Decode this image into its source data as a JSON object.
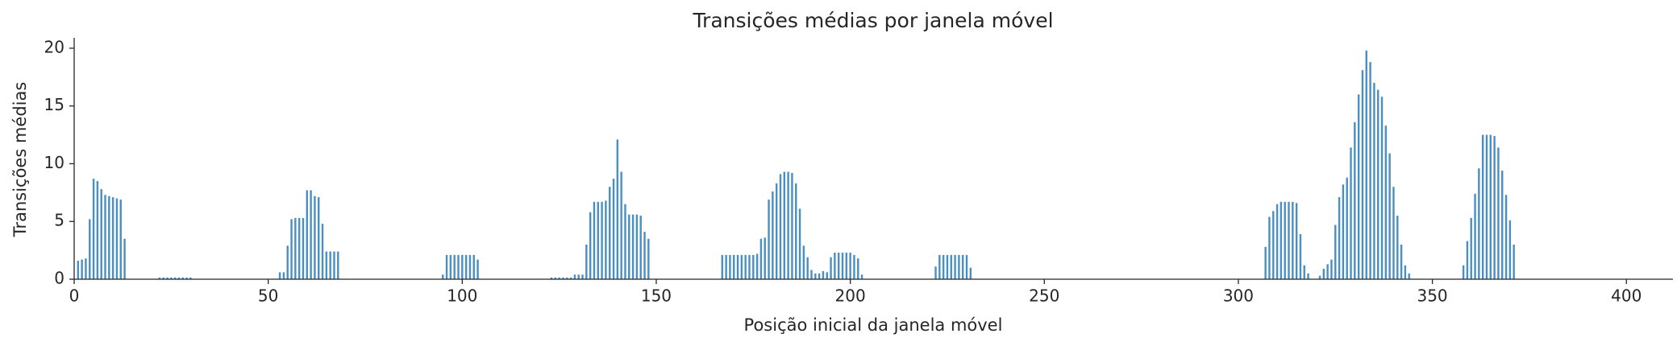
{
  "chart_data": {
    "type": "bar",
    "title": "Transições médias por janela móvel",
    "x_label": "Posição inicial da janela móvel",
    "y_label": "Transições médias",
    "color": "#4a8fc2",
    "xlim": [
      0,
      412
    ],
    "ylim": [
      0,
      20.9
    ],
    "xticks": [
      0,
      50,
      100,
      150,
      200,
      250,
      300,
      350,
      400
    ],
    "yticks": [
      0,
      5,
      10,
      15,
      20
    ],
    "x": [
      1,
      2,
      3,
      4,
      5,
      6,
      7,
      8,
      9,
      10,
      11,
      12,
      13,
      22,
      23,
      24,
      25,
      26,
      27,
      28,
      29,
      30,
      53,
      54,
      55,
      56,
      57,
      58,
      59,
      60,
      61,
      62,
      63,
      64,
      65,
      66,
      67,
      68,
      95,
      96,
      97,
      98,
      99,
      100,
      101,
      102,
      103,
      104,
      123,
      124,
      125,
      126,
      127,
      128,
      129,
      130,
      131,
      132,
      133,
      134,
      135,
      136,
      137,
      138,
      139,
      140,
      141,
      142,
      143,
      144,
      145,
      146,
      147,
      148,
      167,
      168,
      169,
      170,
      171,
      172,
      173,
      174,
      175,
      176,
      177,
      178,
      179,
      180,
      181,
      182,
      183,
      184,
      185,
      186,
      187,
      188,
      189,
      190,
      191,
      192,
      193,
      194,
      195,
      196,
      197,
      198,
      199,
      200,
      201,
      202,
      203,
      222,
      223,
      224,
      225,
      226,
      227,
      228,
      229,
      230,
      231,
      307,
      308,
      309,
      310,
      311,
      312,
      313,
      314,
      315,
      316,
      317,
      318,
      321,
      322,
      323,
      324,
      325,
      326,
      327,
      328,
      329,
      330,
      331,
      332,
      333,
      334,
      335,
      336,
      337,
      338,
      339,
      340,
      341,
      342,
      343,
      344,
      358,
      359,
      360,
      361,
      362,
      363,
      364,
      365,
      366,
      367,
      368,
      369,
      370,
      371
    ],
    "values": [
      1.6,
      1.7,
      1.8,
      5.2,
      8.7,
      8.5,
      7.8,
      7.3,
      7.2,
      7.1,
      7.0,
      6.9,
      3.5,
      0.15,
      0.15,
      0.15,
      0.15,
      0.15,
      0.15,
      0.15,
      0.15,
      0.15,
      0.6,
      0.6,
      2.9,
      5.2,
      5.3,
      5.3,
      5.3,
      7.7,
      7.7,
      7.2,
      7.1,
      4.8,
      2.4,
      2.4,
      2.4,
      2.4,
      0.4,
      2.1,
      2.1,
      2.1,
      2.1,
      2.1,
      2.1,
      2.1,
      2.1,
      1.7,
      0.15,
      0.15,
      0.15,
      0.15,
      0.15,
      0.15,
      0.4,
      0.4,
      0.4,
      3.0,
      5.8,
      6.7,
      6.7,
      6.7,
      6.8,
      8.0,
      8.7,
      12.1,
      9.3,
      6.5,
      5.6,
      5.6,
      5.6,
      5.5,
      4.1,
      3.5,
      2.1,
      2.1,
      2.1,
      2.1,
      2.1,
      2.1,
      2.1,
      2.1,
      2.1,
      2.2,
      3.5,
      3.6,
      6.9,
      7.6,
      8.3,
      9.1,
      9.3,
      9.3,
      9.2,
      8.3,
      6.1,
      2.9,
      1.9,
      0.8,
      0.5,
      0.5,
      0.7,
      0.6,
      1.9,
      2.3,
      2.3,
      2.3,
      2.3,
      2.3,
      2.1,
      1.8,
      0.4,
      1.1,
      2.1,
      2.1,
      2.1,
      2.1,
      2.1,
      2.1,
      2.1,
      2.1,
      1.0,
      2.8,
      5.4,
      5.9,
      6.5,
      6.7,
      6.7,
      6.7,
      6.7,
      6.6,
      3.9,
      1.2,
      0.5,
      0.3,
      0.9,
      1.3,
      1.7,
      4.7,
      7.1,
      8.2,
      8.8,
      11.4,
      13.6,
      16.0,
      18.1,
      19.8,
      18.8,
      17.0,
      16.4,
      15.8,
      13.3,
      10.9,
      8.0,
      5.5,
      3.0,
      1.2,
      0.5,
      1.2,
      3.3,
      5.3,
      7.4,
      9.6,
      12.5,
      12.5,
      12.5,
      12.4,
      11.4,
      9.4,
      7.3,
      5.1,
      3.0
    ]
  }
}
